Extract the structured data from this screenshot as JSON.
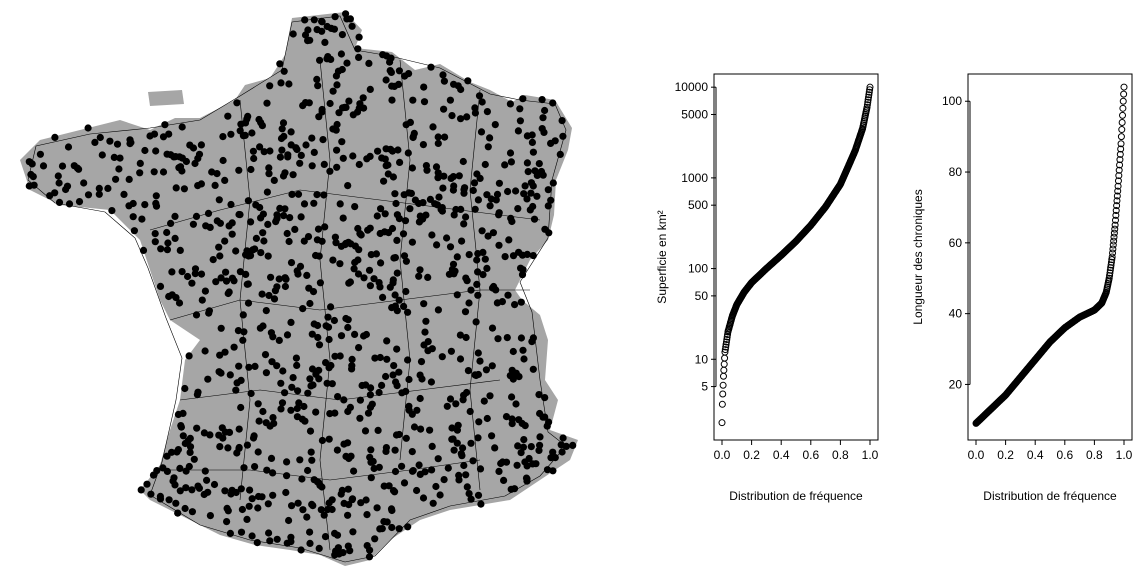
{
  "colors": {
    "background": "#ffffff",
    "map_buffer": "#a6a6a6",
    "map_border": "#000000",
    "points": "#000000"
  },
  "map": {
    "region": "France",
    "layers": [
      "gray buffer zones around stations",
      "department boundaries",
      "black station points"
    ]
  },
  "chart_data": [
    {
      "type": "scatter",
      "title": "",
      "xlabel": "Distribution de fréquence",
      "ylabel": "Superficie en km²",
      "x_scale": "linear",
      "y_scale": "log",
      "xlim": [
        0.0,
        1.0
      ],
      "ylim": [
        1.5,
        12000
      ],
      "x_ticks": [
        "0.0",
        "0.2",
        "0.4",
        "0.6",
        "0.8",
        "1.0"
      ],
      "y_ticks": [
        "5",
        "10",
        "50",
        "100",
        "500",
        "1000",
        "5000",
        "10000"
      ],
      "grid": false,
      "marker": "open-circle",
      "curve_points": [
        [
          0.0,
          2.0
        ],
        [
          0.003,
          3.5
        ],
        [
          0.006,
          4.5
        ],
        [
          0.01,
          6.5
        ],
        [
          0.02,
          12
        ],
        [
          0.04,
          20
        ],
        [
          0.07,
          30
        ],
        [
          0.1,
          40
        ],
        [
          0.15,
          55
        ],
        [
          0.2,
          70
        ],
        [
          0.3,
          100
        ],
        [
          0.4,
          140
        ],
        [
          0.5,
          200
        ],
        [
          0.6,
          300
        ],
        [
          0.7,
          480
        ],
        [
          0.8,
          850
        ],
        [
          0.85,
          1300
        ],
        [
          0.9,
          2000
        ],
        [
          0.95,
          3500
        ],
        [
          0.98,
          6000
        ],
        [
          1.0,
          10000
        ]
      ]
    },
    {
      "type": "scatter",
      "title": "",
      "xlabel": "Distribution de fréquence",
      "ylabel": "Longueur des chroniques",
      "x_scale": "linear",
      "y_scale": "linear",
      "xlim": [
        0.0,
        1.0
      ],
      "ylim": [
        6,
        106
      ],
      "x_ticks": [
        "0.0",
        "0.2",
        "0.4",
        "0.6",
        "0.8",
        "1.0"
      ],
      "y_ticks": [
        "20",
        "40",
        "60",
        "80",
        "100"
      ],
      "grid": false,
      "marker": "open-circle",
      "curve_points": [
        [
          0.0,
          9
        ],
        [
          0.05,
          11
        ],
        [
          0.1,
          13
        ],
        [
          0.2,
          17
        ],
        [
          0.3,
          22
        ],
        [
          0.4,
          27
        ],
        [
          0.5,
          32
        ],
        [
          0.6,
          36
        ],
        [
          0.7,
          39
        ],
        [
          0.8,
          41
        ],
        [
          0.85,
          43
        ],
        [
          0.88,
          46
        ],
        [
          0.9,
          50
        ],
        [
          0.92,
          56
        ],
        [
          0.94,
          65
        ],
        [
          0.96,
          76
        ],
        [
          0.98,
          88
        ],
        [
          1.0,
          104
        ]
      ]
    }
  ]
}
